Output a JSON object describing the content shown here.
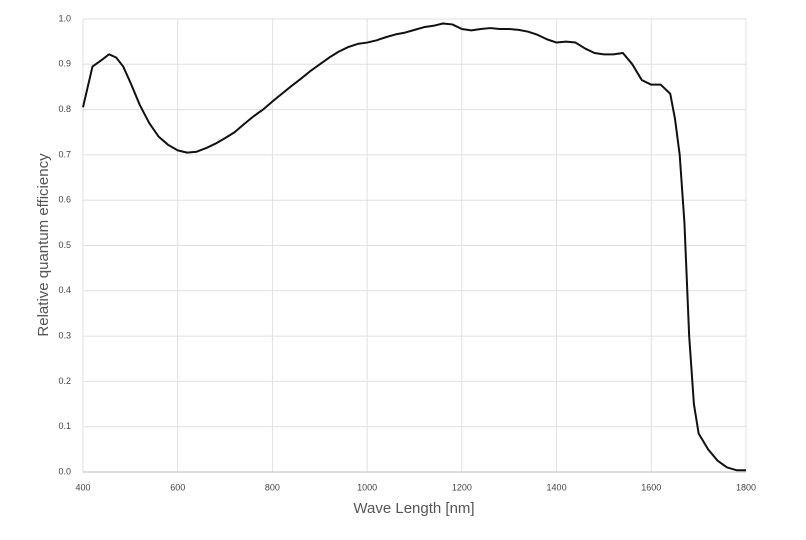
{
  "chart_data": {
    "type": "line",
    "xlabel": "Wave Length [nm]",
    "ylabel": "Relative quantum efficiency",
    "xlim": [
      400,
      1800
    ],
    "xticks": [
      400,
      600,
      800,
      1000,
      1200,
      1400,
      1600,
      1800
    ],
    "ylim": [
      0,
      1
    ],
    "yticks": [
      {
        "value": 0,
        "label": "0.0"
      },
      0.1,
      0.2,
      0.3,
      0.4,
      0.5,
      0.6,
      0.7,
      0.8,
      0.9,
      {
        "value": 1,
        "label": "1.0"
      }
    ],
    "grid": true,
    "x": [
      400,
      420,
      440,
      455,
      470,
      485,
      500,
      520,
      540,
      560,
      580,
      600,
      620,
      640,
      660,
      680,
      700,
      720,
      740,
      760,
      780,
      800,
      820,
      840,
      860,
      880,
      900,
      920,
      940,
      960,
      980,
      1000,
      1020,
      1040,
      1060,
      1080,
      1100,
      1120,
      1140,
      1160,
      1180,
      1200,
      1220,
      1240,
      1260,
      1280,
      1300,
      1320,
      1340,
      1360,
      1380,
      1400,
      1420,
      1440,
      1460,
      1480,
      1500,
      1520,
      1540,
      1560,
      1580,
      1600,
      1620,
      1640,
      1650,
      1660,
      1670,
      1680,
      1690,
      1700,
      1720,
      1740,
      1760,
      1780,
      1800
    ],
    "series": [
      {
        "color": "#111111",
        "values": [
          0.805,
          0.895,
          0.91,
          0.922,
          0.915,
          0.895,
          0.86,
          0.81,
          0.77,
          0.74,
          0.722,
          0.71,
          0.705,
          0.707,
          0.715,
          0.725,
          0.737,
          0.75,
          0.768,
          0.785,
          0.8,
          0.818,
          0.835,
          0.852,
          0.868,
          0.885,
          0.9,
          0.915,
          0.928,
          0.938,
          0.945,
          0.948,
          0.953,
          0.96,
          0.966,
          0.97,
          0.976,
          0.982,
          0.985,
          0.99,
          0.988,
          0.978,
          0.975,
          0.978,
          0.98,
          0.978,
          0.978,
          0.976,
          0.972,
          0.965,
          0.955,
          0.948,
          0.95,
          0.948,
          0.935,
          0.925,
          0.922,
          0.922,
          0.925,
          0.9,
          0.865,
          0.855,
          0.855,
          0.835,
          0.78,
          0.7,
          0.55,
          0.3,
          0.15,
          0.085,
          0.05,
          0.025,
          0.01,
          0.004,
          0.004
        ]
      }
    ]
  }
}
